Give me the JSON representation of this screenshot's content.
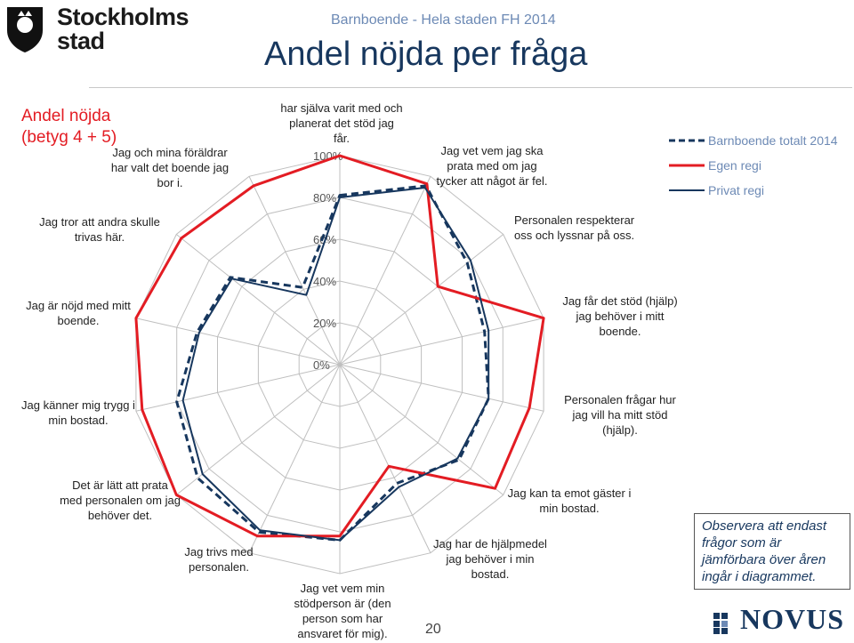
{
  "header": {
    "logo_text_line1": "Stockholms",
    "logo_text_line2": "stad",
    "supertitle": "Barnboende - Hela staden FH 2014",
    "title": "Andel nöjda per fråga"
  },
  "metric_label_line1": "Andel nöjda",
  "metric_label_line2": "(betyg 4 + 5)",
  "note_line1": "Observera att endast",
  "note_line2": "frågor som är",
  "note_line3": "jämförbara över åren",
  "note_line4": "ingår i diagrammet.",
  "page_number": "20",
  "footer_logo": "NOVUS",
  "colors": {
    "total": "#17375e",
    "egen": "#e31c23",
    "privat": "#17375e",
    "grid": "#bfbfbf"
  },
  "chart_data": {
    "type": "radar",
    "title": "",
    "scale_ticks": [
      "0%",
      "20%",
      "40%",
      "60%",
      "80%",
      "100%"
    ],
    "range": [
      0,
      100
    ],
    "legend_position": "top-right",
    "categories": [
      "har själva varit med och planerat det stöd jag får.",
      "Jag vet vem jag ska prata med om jag tycker att något är fel.",
      "Personalen respekterar oss och lyssnar på oss.",
      "Jag får det stöd (hjälp) jag behöver i mitt boende.",
      "Personalen frågar hur jag vill ha mitt stöd (hjälp).",
      "Jag kan ta emot gäster i min bostad.",
      "Jag har de hjälpmedel jag behöver i min bostad.",
      "Jag vet vem min stödperson är (den person som har ansvaret för mig).",
      "Jag trivs med personalen.",
      "Det är lätt att prata med personalen om jag behöver det.",
      "Jag känner mig trygg i min bostad.",
      "Jag är nöjd med mitt boende.",
      "Jag tror att andra skulle trivas här.",
      "Jag och mina föräldrar har valt det boende jag bor i."
    ],
    "label_lines": [
      [
        "har själva varit med och",
        "planerat det stöd jag",
        "får."
      ],
      [
        "Jag vet vem jag ska",
        "prata med om jag",
        "tycker att något är fel."
      ],
      [
        "Personalen respekterar",
        "oss och lyssnar på oss."
      ],
      [
        "Jag får det stöd (hjälp)",
        "jag behöver i mitt",
        "boende."
      ],
      [
        "Personalen frågar hur",
        "jag vill ha mitt stöd",
        "(hjälp)."
      ],
      [
        "Jag kan ta emot gäster i",
        "min bostad."
      ],
      [
        "Jag har de hjälpmedel",
        "jag behöver i min",
        "bostad."
      ],
      [
        "Jag vet vem min",
        "stödperson är (den",
        "person som har",
        "ansvaret för mig)."
      ],
      [
        "Jag trivs med",
        "personalen."
      ],
      [
        "Det är lätt att prata",
        "med personalen om jag",
        "behöver det."
      ],
      [
        "Jag känner mig trygg i",
        "min bostad."
      ],
      [
        "Jag är nöjd med mitt",
        "boende."
      ],
      [
        "Jag tror att andra skulle",
        "trivas här."
      ],
      [
        "Jag och mina föräldrar",
        "har valt det boende jag",
        "bor i."
      ]
    ],
    "series": [
      {
        "name": "Barnboende totalt 2014",
        "style": "dashed",
        "values": [
          81,
          95,
          78,
          71,
          73,
          73,
          63,
          84,
          89,
          87,
          80,
          70,
          67,
          41
        ]
      },
      {
        "name": "Egen regi",
        "style": "solid-red",
        "values": [
          100,
          96,
          60,
          100,
          93,
          95,
          54,
          82,
          91,
          100,
          97,
          100,
          97,
          95
        ]
      },
      {
        "name": "Privat regi",
        "style": "solid-navy",
        "values": [
          80,
          94,
          80,
          73,
          73,
          72,
          65,
          84,
          88,
          84,
          77,
          69,
          66,
          37
        ]
      }
    ]
  }
}
